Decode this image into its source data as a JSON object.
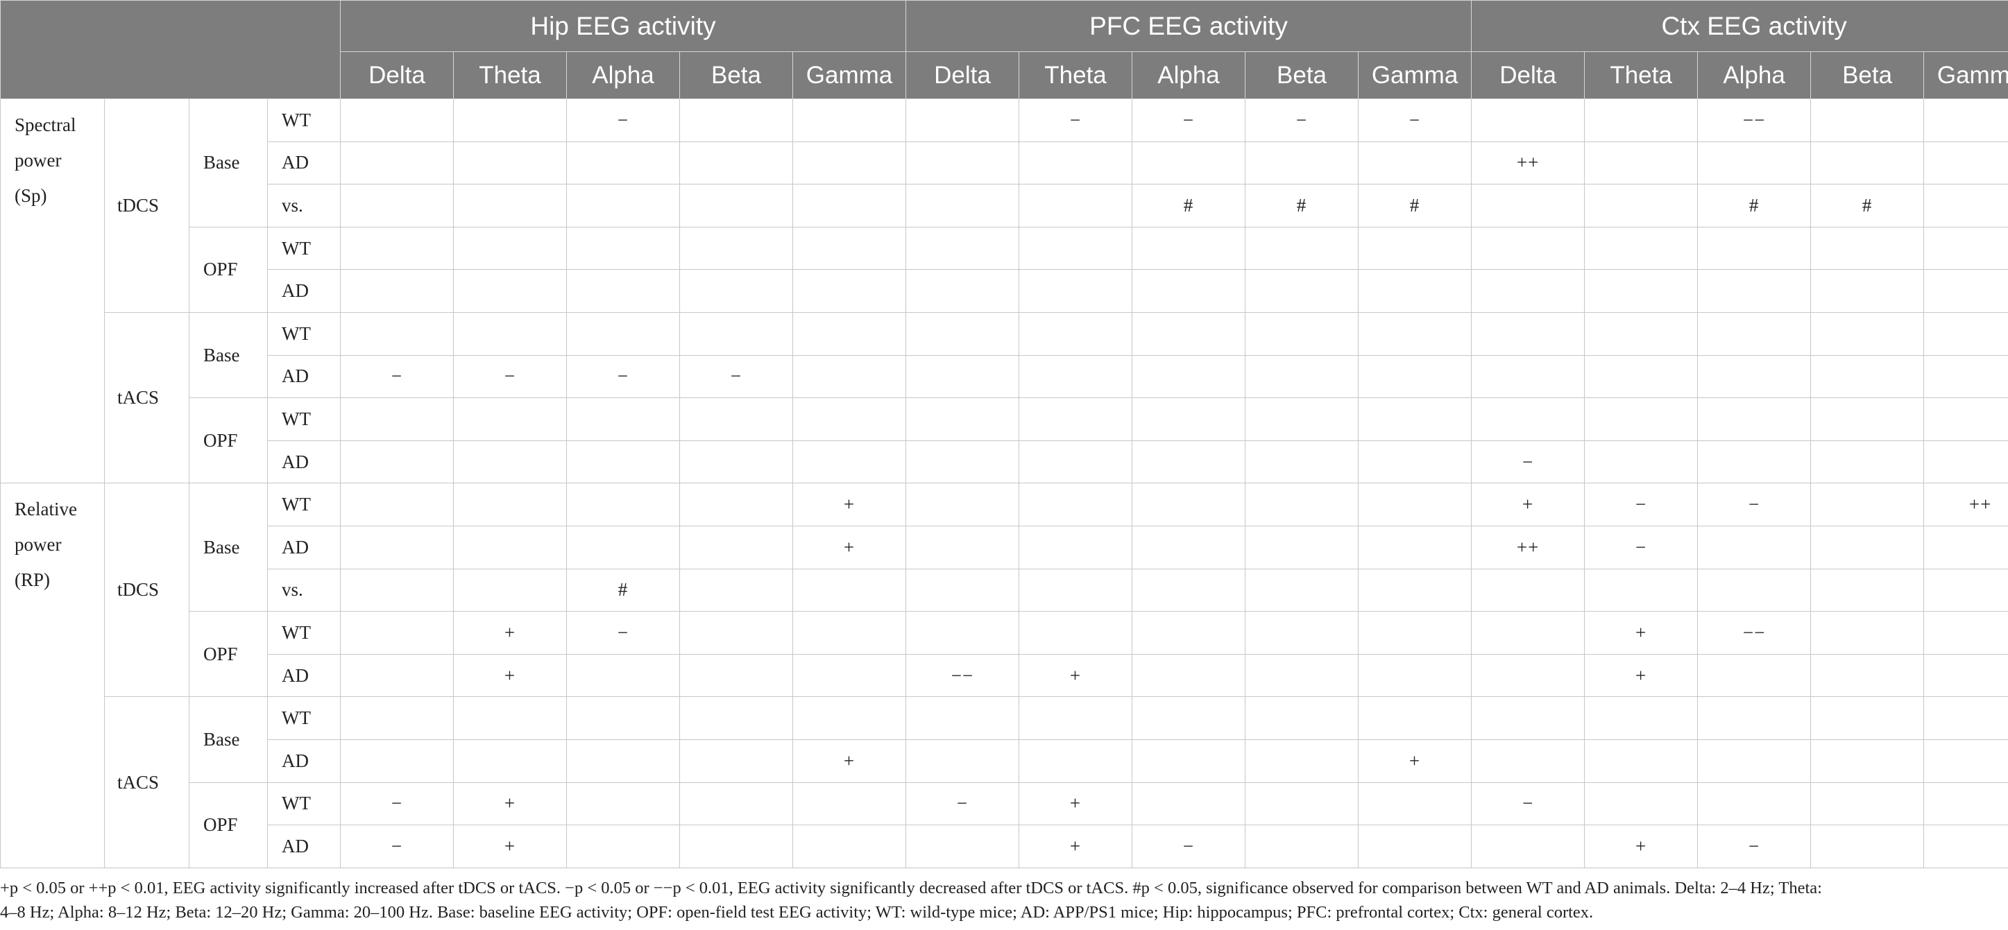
{
  "table": {
    "regions": [
      "Hip EEG activity",
      "PFC EEG activity",
      "Ctx EEG activity"
    ],
    "bands": [
      "Delta",
      "Theta",
      "Alpha",
      "Beta",
      "Gamma"
    ],
    "sections": [
      {
        "measure": [
          "Spectral",
          "power",
          "(Sp)"
        ],
        "stims": [
          {
            "name": "tDCS",
            "conditions": [
              {
                "name": "Base",
                "rows": [
                  {
                    "label": "WT",
                    "values": [
                      "",
                      "",
                      "−",
                      "",
                      "",
                      "",
                      "−",
                      "−",
                      "−",
                      "−",
                      "",
                      "",
                      "−−",
                      "",
                      ""
                    ]
                  },
                  {
                    "label": "AD",
                    "values": [
                      "",
                      "",
                      "",
                      "",
                      "",
                      "",
                      "",
                      "",
                      "",
                      "",
                      "++",
                      "",
                      "",
                      "",
                      ""
                    ]
                  },
                  {
                    "label": "vs.",
                    "values": [
                      "",
                      "",
                      "",
                      "",
                      "",
                      "",
                      "",
                      "#",
                      "#",
                      "#",
                      "",
                      "",
                      "#",
                      "#",
                      ""
                    ]
                  }
                ]
              },
              {
                "name": "OPF",
                "rows": [
                  {
                    "label": "WT",
                    "values": [
                      "",
                      "",
                      "",
                      "",
                      "",
                      "",
                      "",
                      "",
                      "",
                      "",
                      "",
                      "",
                      "",
                      "",
                      ""
                    ]
                  },
                  {
                    "label": "AD",
                    "values": [
                      "",
                      "",
                      "",
                      "",
                      "",
                      "",
                      "",
                      "",
                      "",
                      "",
                      "",
                      "",
                      "",
                      "",
                      ""
                    ]
                  }
                ]
              }
            ]
          },
          {
            "name": "tACS",
            "conditions": [
              {
                "name": "Base",
                "rows": [
                  {
                    "label": "WT",
                    "values": [
                      "",
                      "",
                      "",
                      "",
                      "",
                      "",
                      "",
                      "",
                      "",
                      "",
                      "",
                      "",
                      "",
                      "",
                      ""
                    ]
                  },
                  {
                    "label": "AD",
                    "values": [
                      "−",
                      "−",
                      "−",
                      "−",
                      "",
                      "",
                      "",
                      "",
                      "",
                      "",
                      "",
                      "",
                      "",
                      "",
                      ""
                    ]
                  }
                ]
              },
              {
                "name": "OPF",
                "rows": [
                  {
                    "label": "WT",
                    "values": [
                      "",
                      "",
                      "",
                      "",
                      "",
                      "",
                      "",
                      "",
                      "",
                      "",
                      "",
                      "",
                      "",
                      "",
                      ""
                    ]
                  },
                  {
                    "label": "AD",
                    "values": [
                      "",
                      "",
                      "",
                      "",
                      "",
                      "",
                      "",
                      "",
                      "",
                      "",
                      "−",
                      "",
                      "",
                      "",
                      ""
                    ]
                  }
                ]
              }
            ]
          }
        ]
      },
      {
        "measure": [
          "Relative",
          "power",
          "(RP)"
        ],
        "stims": [
          {
            "name": "tDCS",
            "conditions": [
              {
                "name": "Base",
                "rows": [
                  {
                    "label": "WT",
                    "values": [
                      "",
                      "",
                      "",
                      "",
                      "+",
                      "",
                      "",
                      "",
                      "",
                      "",
                      "+",
                      "−",
                      "−",
                      "",
                      "++"
                    ]
                  },
                  {
                    "label": "AD",
                    "values": [
                      "",
                      "",
                      "",
                      "",
                      "+",
                      "",
                      "",
                      "",
                      "",
                      "",
                      "++",
                      "−",
                      "",
                      "",
                      ""
                    ]
                  },
                  {
                    "label": "vs.",
                    "values": [
                      "",
                      "",
                      "#",
                      "",
                      "",
                      "",
                      "",
                      "",
                      "",
                      "",
                      "",
                      "",
                      "",
                      "",
                      ""
                    ]
                  }
                ]
              },
              {
                "name": "OPF",
                "rows": [
                  {
                    "label": "WT",
                    "values": [
                      "",
                      "+",
                      "−",
                      "",
                      "",
                      "",
                      "",
                      "",
                      "",
                      "",
                      "",
                      "+",
                      "−−",
                      "",
                      ""
                    ]
                  },
                  {
                    "label": "AD",
                    "values": [
                      "",
                      "+",
                      "",
                      "",
                      "",
                      "−−",
                      "+",
                      "",
                      "",
                      "",
                      "",
                      "+",
                      "",
                      "",
                      ""
                    ]
                  }
                ]
              }
            ]
          },
          {
            "name": "tACS",
            "conditions": [
              {
                "name": "Base",
                "rows": [
                  {
                    "label": "WT",
                    "values": [
                      "",
                      "",
                      "",
                      "",
                      "",
                      "",
                      "",
                      "",
                      "",
                      "",
                      "",
                      "",
                      "",
                      "",
                      ""
                    ]
                  },
                  {
                    "label": "AD",
                    "values": [
                      "",
                      "",
                      "",
                      "",
                      "+",
                      "",
                      "",
                      "",
                      "",
                      "+",
                      "",
                      "",
                      "",
                      "",
                      ""
                    ]
                  }
                ]
              },
              {
                "name": "OPF",
                "rows": [
                  {
                    "label": "WT",
                    "values": [
                      "−",
                      "+",
                      "",
                      "",
                      "",
                      "−",
                      "+",
                      "",
                      "",
                      "",
                      "−",
                      "",
                      "",
                      "",
                      ""
                    ]
                  },
                  {
                    "label": "AD",
                    "values": [
                      "−",
                      "+",
                      "",
                      "",
                      "",
                      "",
                      "+",
                      "−",
                      "",
                      "",
                      "",
                      "+",
                      "−",
                      "",
                      ""
                    ]
                  }
                ]
              }
            ]
          }
        ]
      }
    ]
  },
  "footnote": {
    "line1": "+p < 0.05 or ++p < 0.01, EEG activity significantly increased after tDCS or tACS. −p < 0.05 or −−p < 0.01, EEG activity significantly decreased after tDCS or tACS. #p < 0.05, significance observed for comparison between WT and AD animals. Delta: 2–4 Hz; Theta:",
    "line2": "4–8 Hz; Alpha: 8–12 Hz; Beta: 12–20 Hz; Gamma: 20–100 Hz. Base: baseline EEG activity; OPF: open-field test EEG activity; WT: wild-type mice; AD: APP/PS1 mice; Hip: hippocampus; PFC: prefrontal cortex; Ctx: general cortex."
  }
}
